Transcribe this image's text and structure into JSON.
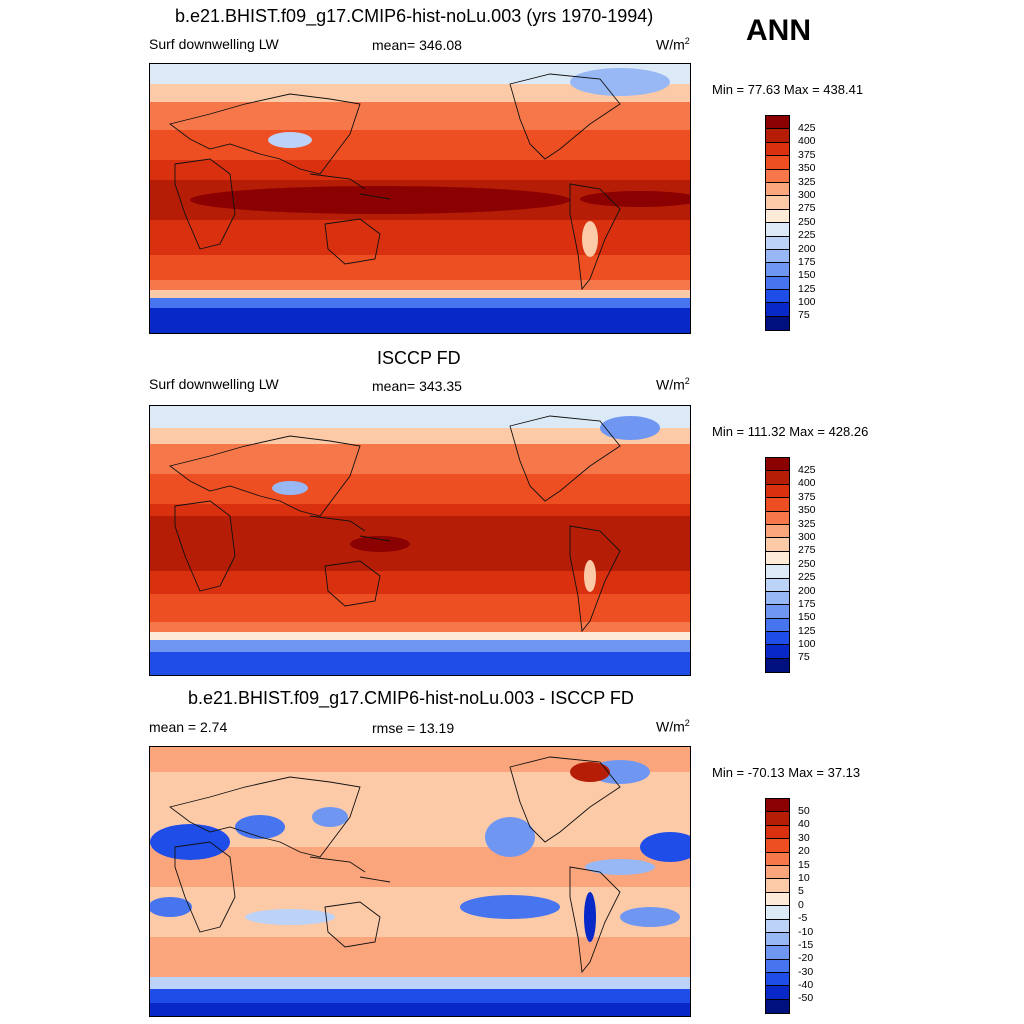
{
  "season": "ANN",
  "panels": [
    {
      "title": "b.e21.BHIST.f09_g17.CMIP6-hist-noLu.003 (yrs 1970-1994)",
      "left_label": "Surf downwelling LW",
      "center_label": "mean= 346.08",
      "unit": "W/m",
      "unit_sup": "2",
      "minmax": "Min =  77.63 Max = 438.41",
      "colorbar": {
        "levels": [
          "425",
          "400",
          "375",
          "350",
          "325",
          "300",
          "275",
          "250",
          "225",
          "200",
          "175",
          "150",
          "125",
          "100",
          "75"
        ],
        "colors": [
          "#8b0000",
          "#b51d06",
          "#d9300f",
          "#ee4f22",
          "#f6774a",
          "#fba57c",
          "#fdcaa8",
          "#fdebd8",
          "#dce9f7",
          "#bcd2f7",
          "#98b8f5",
          "#6f97f2",
          "#4675ef",
          "#1f4de8",
          "#0829c7",
          "#00107e"
        ]
      }
    },
    {
      "title": "ISCCP FD",
      "left_label": "Surf downwelling LW",
      "center_label": "mean= 343.35",
      "unit": "W/m",
      "unit_sup": "2",
      "minmax": "Min = 111.32 Max = 428.26",
      "colorbar": {
        "levels": [
          "425",
          "400",
          "375",
          "350",
          "325",
          "300",
          "275",
          "250",
          "225",
          "200",
          "175",
          "150",
          "125",
          "100",
          "75"
        ],
        "colors": [
          "#8b0000",
          "#b51d06",
          "#d9300f",
          "#ee4f22",
          "#f6774a",
          "#fba57c",
          "#fdcaa8",
          "#fdebd8",
          "#dce9f7",
          "#bcd2f7",
          "#98b8f5",
          "#6f97f2",
          "#4675ef",
          "#1f4de8",
          "#0829c7",
          "#00107e"
        ]
      }
    },
    {
      "title": "b.e21.BHIST.f09_g17.CMIP6-hist-noLu.003 - ISCCP FD",
      "left_label": "mean =   2.74",
      "center_label": "rmse =  13.19",
      "unit": "W/m",
      "unit_sup": "2",
      "minmax": "Min = -70.13 Max =  37.13",
      "colorbar": {
        "levels": [
          "50",
          "40",
          "30",
          "20",
          "15",
          "10",
          "5",
          "0",
          "-5",
          "-10",
          "-15",
          "-20",
          "-30",
          "-40",
          "-50"
        ],
        "colors": [
          "#8b0000",
          "#b51d06",
          "#d9300f",
          "#ee4f22",
          "#f6774a",
          "#fba57c",
          "#fdcaa8",
          "#fdebd8",
          "#dce9f7",
          "#bcd2f7",
          "#98b8f5",
          "#6f97f2",
          "#4675ef",
          "#1f4de8",
          "#0829c7",
          "#00107e"
        ]
      }
    }
  ]
}
